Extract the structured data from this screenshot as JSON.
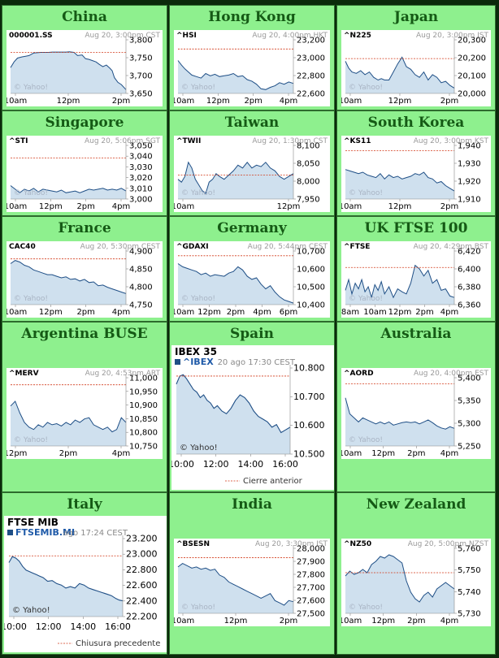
{
  "colors": {
    "background": "#0b2a0b",
    "panel": "#8ef08e",
    "title": "#155a15",
    "line": "#1f4f86",
    "fill": "#cfe0ee",
    "prev_close": "#d23a1a"
  },
  "watermark": "© Yahoo!",
  "chart_data": [
    {
      "id": "china",
      "type": "area",
      "panel_title": "China",
      "symbol": "000001.SS",
      "timestamp": "Aug 20, 3:00pm CST",
      "x_ticks": [
        "10am",
        "12pm",
        "2pm"
      ],
      "x_range": [
        0,
        10
      ],
      "y_ticks": [
        "3,800",
        "3,750",
        "3,700",
        "3,650"
      ],
      "y_range": [
        3640,
        3810
      ],
      "prev_close": 3770,
      "x": [
        0,
        0.3,
        0.6,
        1.0,
        1.3,
        1.6,
        2.0,
        2.3,
        2.6,
        3.0,
        3.3,
        3.6,
        4.0,
        4.4,
        4.8,
        5.1,
        5.5,
        5.8,
        6.2,
        6.5,
        6.8,
        7.1,
        7.4,
        7.7,
        8.0,
        8.3,
        8.6,
        8.8,
        9.0,
        9.3,
        9.6,
        10.0
      ],
      "y": [
        3722,
        3740,
        3752,
        3756,
        3758,
        3760,
        3768,
        3769,
        3770,
        3770,
        3770,
        3771,
        3771,
        3771,
        3771,
        3772,
        3770,
        3760,
        3762,
        3750,
        3748,
        3744,
        3740,
        3732,
        3725,
        3730,
        3720,
        3712,
        3690,
        3675,
        3668,
        3652
      ]
    },
    {
      "id": "hongkong",
      "type": "area",
      "panel_title": "Hong Kong",
      "symbol": "^HSI",
      "timestamp": "Aug 20, 4:00pm HKT",
      "x_ticks": [
        "10am",
        "12pm",
        "2pm",
        "4pm"
      ],
      "x_range": [
        0,
        10
      ],
      "y_ticks": [
        "23,200",
        "23,000",
        "22,800",
        "22,600"
      ],
      "y_range": [
        22560,
        23260
      ],
      "prev_close": 23140,
      "x": [
        0,
        0.3,
        0.6,
        0.9,
        1.2,
        1.6,
        2.0,
        2.4,
        2.8,
        3.2,
        3.6,
        4.0,
        4.4,
        4.8,
        5.2,
        5.6,
        6.0,
        6.4,
        6.8,
        7.2,
        7.6,
        8.0,
        8.4,
        8.8,
        9.2,
        9.6,
        10.0
      ],
      "y": [
        22990,
        22930,
        22880,
        22840,
        22800,
        22780,
        22760,
        22820,
        22790,
        22810,
        22780,
        22790,
        22800,
        22820,
        22780,
        22790,
        22740,
        22720,
        22680,
        22620,
        22610,
        22640,
        22660,
        22700,
        22680,
        22710,
        22690
      ]
    },
    {
      "id": "japan",
      "type": "area",
      "panel_title": "Japan",
      "symbol": "^N225",
      "timestamp": "Aug 20, 3:00pm JST",
      "x_ticks": [
        "10am",
        "12pm",
        "2pm"
      ],
      "x_range": [
        0,
        10
      ],
      "y_ticks": [
        "20,300",
        "20,200",
        "20,100",
        "20,000"
      ],
      "y_range": [
        19960,
        20360
      ],
      "prev_close": 20220,
      "x": [
        0,
        0.3,
        0.6,
        1.0,
        1.4,
        1.8,
        2.2,
        2.6,
        3.0,
        3.3,
        3.6,
        4.0,
        4.4,
        4.8,
        5.2,
        5.6,
        6.0,
        6.4,
        6.8,
        7.2,
        7.6,
        8.0,
        8.4,
        8.8,
        9.2,
        9.6,
        10.0
      ],
      "y": [
        20200,
        20150,
        20120,
        20110,
        20130,
        20100,
        20120,
        20080,
        20060,
        20070,
        20060,
        20060,
        20120,
        20180,
        20230,
        20160,
        20140,
        20100,
        20080,
        20120,
        20060,
        20100,
        20080,
        20040,
        20050,
        20020,
        20000
      ]
    },
    {
      "id": "singapore",
      "type": "area",
      "panel_title": "Singapore",
      "symbol": "^STI",
      "timestamp": "Aug 20, 5:06pm SGT",
      "x_ticks": [
        "10am",
        "12pm",
        "2pm",
        "4pm"
      ],
      "x_range": [
        0,
        10
      ],
      "y_ticks": [
        "3,050",
        "3,040",
        "3,030",
        "3,020",
        "3,010",
        "3,000"
      ],
      "y_range": [
        2995,
        3055
      ],
      "prev_close": 3041,
      "x": [
        0,
        0.4,
        0.8,
        1.2,
        1.6,
        2.0,
        2.4,
        2.8,
        3.2,
        3.6,
        4.0,
        4.4,
        4.8,
        5.2,
        5.6,
        6.0,
        6.4,
        6.8,
        7.2,
        7.6,
        8.0,
        8.4,
        8.8,
        9.2,
        9.6,
        10.0
      ],
      "y": [
        3010,
        3006,
        3002,
        3006,
        3004,
        3007,
        3003,
        3006,
        3005,
        3004,
        3003,
        3005,
        3002,
        3003,
        3004,
        3002,
        3004,
        3006,
        3005,
        3006,
        3007,
        3005,
        3006,
        3005,
        3007,
        3004
      ]
    },
    {
      "id": "taiwan",
      "type": "area",
      "panel_title": "Taiwan",
      "symbol": "^TWII",
      "timestamp": "Aug 20, 1:30pm CST",
      "x_ticks": [
        "10am",
        "12pm"
      ],
      "x_range": [
        0,
        10
      ],
      "y_ticks": [
        "8,100",
        "8,050",
        "8,000",
        "7,950"
      ],
      "y_range": [
        7930,
        8120
      ],
      "prev_close": 8015,
      "x": [
        0,
        0.3,
        0.6,
        0.9,
        1.2,
        1.5,
        1.8,
        2.1,
        2.4,
        2.7,
        3.0,
        3.3,
        3.6,
        4.0,
        4.4,
        4.8,
        5.2,
        5.6,
        6.0,
        6.4,
        6.8,
        7.2,
        7.6,
        8.0,
        8.4,
        8.8,
        9.2,
        9.6,
        10.0
      ],
      "y": [
        8000,
        7990,
        8010,
        8060,
        8040,
        8000,
        7980,
        7960,
        7950,
        7990,
        8000,
        8020,
        8010,
        8000,
        8015,
        8030,
        8050,
        8040,
        8060,
        8040,
        8050,
        8045,
        8060,
        8040,
        8030,
        8010,
        8000,
        8010,
        8020
      ]
    },
    {
      "id": "southkorea",
      "type": "area",
      "panel_title": "South Korea",
      "symbol": "^KS11",
      "timestamp": "Aug 20, 3:00pm KST",
      "x_ticks": [
        "10am",
        "12pm",
        "2pm"
      ],
      "x_range": [
        0,
        10
      ],
      "y_ticks": [
        "1,940",
        "1,930",
        "1,920",
        "1,910"
      ],
      "y_range": [
        1905,
        1945
      ],
      "prev_close": 1941,
      "x": [
        0,
        0.4,
        0.8,
        1.2,
        1.6,
        2.0,
        2.4,
        2.8,
        3.2,
        3.6,
        4.0,
        4.4,
        4.8,
        5.2,
        5.6,
        6.0,
        6.4,
        6.8,
        7.2,
        7.6,
        8.0,
        8.4,
        8.8,
        9.2,
        9.6,
        10.0
      ],
      "y": [
        1927,
        1926,
        1925,
        1924,
        1925,
        1923,
        1922,
        1921,
        1924,
        1920,
        1923,
        1921,
        1922,
        1920,
        1921,
        1922,
        1924,
        1923,
        1925,
        1921,
        1920,
        1917,
        1918,
        1915,
        1913,
        1911
      ]
    },
    {
      "id": "france",
      "type": "area",
      "panel_title": "France",
      "symbol": "CAC40",
      "timestamp": "Aug 20, 5:30pm CEST",
      "x_ticks": [
        "10am",
        "12pm",
        "2pm",
        "4pm"
      ],
      "x_range": [
        0,
        10
      ],
      "y_ticks": [
        "4,900",
        "4,850",
        "4,800",
        "4,750"
      ],
      "y_range": [
        4740,
        4910
      ],
      "prev_close": 4885,
      "x": [
        0,
        0.4,
        0.8,
        1.2,
        1.6,
        2.0,
        2.4,
        2.8,
        3.2,
        3.6,
        4.0,
        4.4,
        4.8,
        5.2,
        5.6,
        6.0,
        6.4,
        6.8,
        7.2,
        7.6,
        8.0,
        8.4,
        8.8,
        9.2,
        9.6,
        10.0
      ],
      "y": [
        4870,
        4880,
        4875,
        4865,
        4860,
        4850,
        4845,
        4840,
        4835,
        4835,
        4830,
        4825,
        4828,
        4820,
        4822,
        4815,
        4820,
        4810,
        4812,
        4800,
        4802,
        4795,
        4790,
        4785,
        4780,
        4775
      ]
    },
    {
      "id": "germany",
      "type": "area",
      "panel_title": "Germany",
      "symbol": "^GDAXI",
      "timestamp": "Aug 20, 5:44pm CEST",
      "x_ticks": [
        "10am",
        "12pm",
        "2pm",
        "4pm",
        "6pm"
      ],
      "x_range": [
        0,
        10
      ],
      "y_ticks": [
        "10,700",
        "10,600",
        "10,500",
        "10,400"
      ],
      "y_range": [
        10380,
        10720
      ],
      "prev_close": 10690,
      "x": [
        0,
        0.4,
        0.8,
        1.2,
        1.6,
        2.0,
        2.4,
        2.8,
        3.2,
        3.6,
        4.0,
        4.4,
        4.8,
        5.2,
        5.6,
        6.0,
        6.4,
        6.8,
        7.2,
        7.6,
        8.0,
        8.4,
        8.8,
        9.2,
        9.6,
        10.0
      ],
      "y": [
        10640,
        10620,
        10610,
        10600,
        10590,
        10570,
        10580,
        10560,
        10570,
        10565,
        10560,
        10580,
        10590,
        10620,
        10600,
        10560,
        10540,
        10550,
        10510,
        10480,
        10500,
        10460,
        10430,
        10410,
        10400,
        10390
      ]
    },
    {
      "id": "uk",
      "type": "area",
      "panel_title": "UK FTSE 100",
      "symbol": "^FTSE",
      "timestamp": "Aug 20, 4:29pm BST",
      "x_ticks": [
        "8am",
        "10am",
        "12pm",
        "2pm",
        "4pm"
      ],
      "x_range": [
        0,
        10
      ],
      "y_ticks": [
        "6,420",
        "6,400",
        "6,380",
        "6,360"
      ],
      "y_range": [
        6350,
        6425
      ],
      "prev_close": 6402,
      "x": [
        0,
        0.3,
        0.6,
        0.9,
        1.2,
        1.5,
        1.8,
        2.1,
        2.4,
        2.7,
        3.0,
        3.3,
        3.6,
        4.0,
        4.4,
        4.8,
        5.2,
        5.6,
        6.0,
        6.4,
        6.8,
        7.2,
        7.6,
        8.0,
        8.4,
        8.8,
        9.2,
        9.6,
        10.0
      ],
      "y": [
        6370,
        6385,
        6365,
        6380,
        6372,
        6385,
        6368,
        6375,
        6360,
        6378,
        6370,
        6382,
        6365,
        6375,
        6360,
        6372,
        6368,
        6365,
        6380,
        6405,
        6400,
        6390,
        6398,
        6380,
        6385,
        6370,
        6372,
        6362,
        6360
      ]
    },
    {
      "id": "argentina",
      "type": "area",
      "panel_title": "Argentina BUSE",
      "symbol": "^MERV",
      "timestamp": "Aug 20, 4:53pm ART",
      "x_ticks": [
        "12pm",
        "2pm",
        "4pm"
      ],
      "x_range": [
        0,
        10
      ],
      "y_ticks": [
        "11,000",
        "10,950",
        "10,900",
        "10,850",
        "10,800",
        "10,750"
      ],
      "y_range": [
        10730,
        11020
      ],
      "prev_close": 10990,
      "x": [
        0,
        0.4,
        0.8,
        1.2,
        1.6,
        2.0,
        2.4,
        2.8,
        3.2,
        3.6,
        4.0,
        4.4,
        4.8,
        5.2,
        5.6,
        6.0,
        6.4,
        6.8,
        7.2,
        7.6,
        8.0,
        8.4,
        8.8,
        9.2,
        9.6,
        10.0
      ],
      "y": [
        10900,
        10920,
        10870,
        10830,
        10810,
        10800,
        10820,
        10810,
        10830,
        10820,
        10825,
        10815,
        10830,
        10820,
        10840,
        10830,
        10845,
        10850,
        10820,
        10810,
        10800,
        10810,
        10790,
        10800,
        10850,
        10830
      ]
    },
    {
      "id": "spain",
      "type": "area",
      "panel_title": "Spain",
      "title": "IBEX 35",
      "symbol": "^IBEX",
      "timestamp": "20 ago 17:30 CEST",
      "legend": "Cierre anterior",
      "x_ticks": [
        "10:00",
        "12:00",
        "14:00",
        "16:00"
      ],
      "x_range": [
        0,
        10
      ],
      "y_ticks": [
        "10.800",
        "10.700",
        "10.600",
        "10.500"
      ],
      "y_range": [
        10500,
        10820
      ],
      "prev_close": 10790,
      "x": [
        0,
        0.3,
        0.6,
        0.9,
        1.2,
        1.5,
        1.8,
        2.1,
        2.4,
        2.7,
        3.0,
        3.3,
        3.6,
        4.0,
        4.4,
        4.8,
        5.2,
        5.6,
        6.0,
        6.4,
        6.8,
        7.2,
        7.6,
        8.0,
        8.4,
        8.8,
        9.2,
        9.6,
        10.0
      ],
      "y": [
        10760,
        10790,
        10795,
        10780,
        10760,
        10740,
        10730,
        10710,
        10720,
        10700,
        10690,
        10670,
        10680,
        10660,
        10650,
        10670,
        10700,
        10720,
        10710,
        10690,
        10660,
        10640,
        10630,
        10620,
        10600,
        10610,
        10580,
        10590,
        10600
      ]
    },
    {
      "id": "australia",
      "type": "area",
      "panel_title": "Australia",
      "symbol": "^AORD",
      "timestamp": "Aug 20, 4:00pm EST",
      "x_ticks": [
        "10am",
        "12pm",
        "2pm",
        "4pm"
      ],
      "x_range": [
        0,
        10
      ],
      "y_ticks": [
        "5,400",
        "5,350",
        "5,300",
        "5,250"
      ],
      "y_range": [
        5240,
        5410
      ],
      "prev_close": 5395,
      "x": [
        0,
        0.4,
        0.8,
        1.2,
        1.6,
        2.0,
        2.4,
        2.8,
        3.2,
        3.6,
        4.0,
        4.4,
        4.8,
        5.2,
        5.6,
        6.0,
        6.4,
        6.8,
        7.2,
        7.6,
        8.0,
        8.4,
        8.8,
        9.2,
        9.6,
        10.0
      ],
      "y": [
        5360,
        5320,
        5310,
        5300,
        5310,
        5305,
        5300,
        5295,
        5300,
        5295,
        5300,
        5292,
        5295,
        5298,
        5300,
        5298,
        5300,
        5295,
        5300,
        5305,
        5298,
        5290,
        5285,
        5282,
        5288,
        5284
      ]
    },
    {
      "id": "italy",
      "type": "area",
      "panel_title": "Italy",
      "title": "FTSE MIB",
      "symbol": "FTSEMIB.MI",
      "timestamp": "ago 17:24 CEST",
      "legend": "Chiusura precedente",
      "x_ticks": [
        "10:00",
        "12:00",
        "14:00",
        "16:00"
      ],
      "x_range": [
        0,
        10
      ],
      "y_ticks": [
        "23.200",
        "23.000",
        "22.800",
        "22.600",
        "22.400",
        "22.200"
      ],
      "y_range": [
        22180,
        23220
      ],
      "prev_close": 22990,
      "x": [
        0,
        0.3,
        0.6,
        0.9,
        1.2,
        1.5,
        1.8,
        2.1,
        2.4,
        2.7,
        3.0,
        3.4,
        3.8,
        4.2,
        4.6,
        5.0,
        5.4,
        5.8,
        6.2,
        6.6,
        7.0,
        7.4,
        7.8,
        8.2,
        8.6,
        9.0,
        9.4,
        9.7,
        10.0
      ],
      "y": [
        22900,
        22980,
        22960,
        22920,
        22850,
        22800,
        22780,
        22760,
        22740,
        22720,
        22700,
        22650,
        22660,
        22620,
        22600,
        22560,
        22580,
        22560,
        22620,
        22600,
        22560,
        22540,
        22520,
        22500,
        22480,
        22460,
        22420,
        22400,
        22390
      ]
    },
    {
      "id": "india",
      "type": "area",
      "panel_title": "India",
      "symbol": "^BSESN",
      "timestamp": "Aug 20, 3:30pm IST",
      "x_ticks": [
        "10am",
        "12pm",
        "2pm"
      ],
      "x_range": [
        0,
        10
      ],
      "y_ticks": [
        "28,000",
        "27,900",
        "27,800",
        "27,700",
        "27,600",
        "27,500"
      ],
      "y_range": [
        27470,
        28030
      ],
      "prev_close": 27950,
      "x": [
        0,
        0.4,
        0.8,
        1.2,
        1.6,
        2.0,
        2.4,
        2.8,
        3.2,
        3.6,
        4.0,
        4.4,
        4.8,
        5.2,
        5.6,
        6.0,
        6.4,
        6.8,
        7.2,
        7.6,
        8.0,
        8.4,
        8.8,
        9.2,
        9.6,
        10.0
      ],
      "y": [
        27870,
        27900,
        27880,
        27860,
        27870,
        27850,
        27860,
        27840,
        27850,
        27800,
        27780,
        27740,
        27720,
        27700,
        27680,
        27660,
        27640,
        27620,
        27600,
        27620,
        27640,
        27580,
        27560,
        27540,
        27580,
        27570
      ]
    },
    {
      "id": "newzealand",
      "type": "area",
      "panel_title": "New Zealand",
      "symbol": "^NZ50",
      "timestamp": "Aug 20, 5:00pm NZST",
      "x_ticks": [
        "10am",
        "12pm",
        "2pm",
        "4pm"
      ],
      "x_range": [
        0,
        10
      ],
      "y_ticks": [
        "5,760",
        "5,750",
        "5,740",
        "5,730"
      ],
      "y_range": [
        5725,
        5765
      ],
      "prev_close": 5750,
      "x": [
        0,
        0.4,
        0.8,
        1.2,
        1.6,
        2.0,
        2.4,
        2.8,
        3.2,
        3.6,
        4.0,
        4.4,
        4.8,
        5.2,
        5.6,
        6.0,
        6.4,
        6.8,
        7.2,
        7.6,
        8.0,
        8.4,
        8.8,
        9.2,
        9.6,
        10.0
      ],
      "y": [
        5748,
        5751,
        5749,
        5750,
        5752,
        5750,
        5755,
        5757,
        5760,
        5759,
        5761,
        5760,
        5758,
        5756,
        5745,
        5738,
        5734,
        5732,
        5736,
        5738,
        5735,
        5740,
        5742,
        5744,
        5742,
        5740
      ]
    }
  ]
}
